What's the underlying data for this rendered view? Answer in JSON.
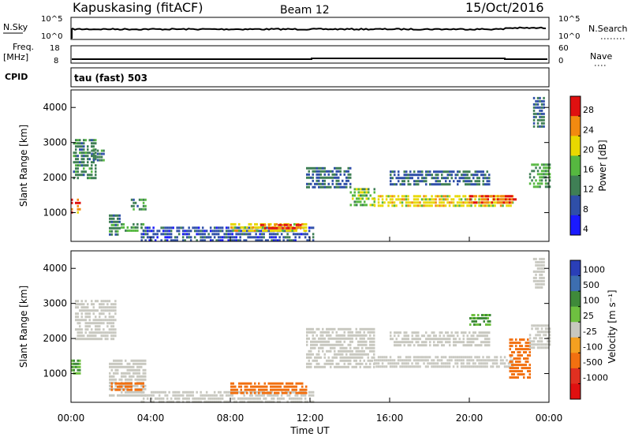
{
  "header": {
    "station": "Kapuskasing (fitACF)",
    "beam": "Beam 12",
    "date": "15/Oct/2016"
  },
  "top_panels": {
    "noise": {
      "left_label": "N.Sky",
      "left_ticks": [
        "10^5",
        "10^0"
      ],
      "right_label": "N.Search",
      "right_ticks": [
        "10^5",
        "10^0"
      ]
    },
    "freq": {
      "left_label_1": "Freq.",
      "left_label_2": "[MHz]",
      "left_ticks": [
        "18",
        "8"
      ],
      "right_label": "Nave",
      "right_ticks": [
        "60",
        "0"
      ]
    },
    "cpid": {
      "label": "CPID",
      "text": "tau (fast) 503"
    }
  },
  "x_axis": {
    "label": "Time UT",
    "ticks": [
      "00:00",
      "04:00",
      "08:00",
      "12:00",
      "16:00",
      "20:00",
      "00:00"
    ]
  },
  "colorbars": {
    "power": {
      "label": "Power [dB]",
      "ticks": [
        "28",
        "24",
        "20",
        "16",
        "12",
        "8",
        "4"
      ],
      "colors": [
        "#1a1aff",
        "#2f4fa8",
        "#3f7f55",
        "#56b840",
        "#e8d800",
        "#f28a10",
        "#e01010"
      ]
    },
    "velocity": {
      "label": "Velocity [m s⁻¹]",
      "ticks": [
        "1000",
        "500",
        "100",
        "25",
        "-25",
        "-100",
        "-500",
        "-1000"
      ],
      "colors": [
        "#2a3fb8",
        "#3d6eb0",
        "#3f8a3a",
        "#6ec040",
        "#c8c8c0",
        "#f4a020",
        "#f27010",
        "#e03020",
        "#e01010"
      ]
    }
  },
  "chart_data": [
    {
      "type": "heatmap",
      "title": "Power",
      "ylabel": "Slant Range [km]",
      "xlabel": "Time UT",
      "xlim": [
        "00:00",
        "24:00"
      ],
      "ylim": [
        180,
        4500
      ],
      "y_ticks": [
        1000,
        2000,
        3000,
        4000
      ],
      "regions": [
        {
          "t": [
            0.0,
            0.4
          ],
          "r": [
            1000,
            1400
          ],
          "v": 24
        },
        {
          "t": [
            0.1,
            1.2
          ],
          "r": [
            2000,
            3100
          ],
          "v": 12
        },
        {
          "t": [
            1.0,
            1.6
          ],
          "r": [
            2500,
            2800
          ],
          "v": 12
        },
        {
          "t": [
            1.9,
            2.4
          ],
          "r": [
            400,
            950
          ],
          "v": 12
        },
        {
          "t": [
            2.5,
            3.6
          ],
          "r": [
            500,
            700
          ],
          "v": 14
        },
        {
          "t": [
            3.0,
            3.7
          ],
          "r": [
            1100,
            1400
          ],
          "v": 12
        },
        {
          "t": [
            3.5,
            12.2
          ],
          "r": [
            200,
            600
          ],
          "v": 8
        },
        {
          "t": [
            8.0,
            11.8
          ],
          "r": [
            500,
            700
          ],
          "v": 20
        },
        {
          "t": [
            9.5,
            11.5
          ],
          "r": [
            560,
            680
          ],
          "v": 28
        },
        {
          "t": [
            11.8,
            14.0
          ],
          "r": [
            1700,
            2300
          ],
          "v": 10
        },
        {
          "t": [
            14.0,
            15.2
          ],
          "r": [
            1200,
            1700
          ],
          "v": 16
        },
        {
          "t": [
            15.2,
            22.2
          ],
          "r": [
            1150,
            1500
          ],
          "v": 20
        },
        {
          "t": [
            20.0,
            22.3
          ],
          "r": [
            1250,
            1500
          ],
          "v": 26
        },
        {
          "t": [
            16.0,
            21.0
          ],
          "r": [
            1800,
            2200
          ],
          "v": 10
        },
        {
          "t": [
            23.0,
            24.0
          ],
          "r": [
            1700,
            2400
          ],
          "v": 14
        },
        {
          "t": [
            23.2,
            23.7
          ],
          "r": [
            3400,
            4300
          ],
          "v": 10
        }
      ]
    },
    {
      "type": "heatmap",
      "title": "Velocity",
      "ylabel": "Slant Range [km]",
      "xlabel": "Time UT",
      "xlim": [
        "00:00",
        "24:00"
      ],
      "ylim": [
        180,
        4500
      ],
      "y_ticks": [
        1000,
        2000,
        3000,
        4000
      ],
      "regions": [
        {
          "t": [
            0.0,
            0.4
          ],
          "r": [
            1000,
            1400
          ],
          "v": 60
        },
        {
          "t": [
            0.2,
            2.2
          ],
          "r": [
            2000,
            3100
          ],
          "v": 0
        },
        {
          "t": [
            1.9,
            3.7
          ],
          "r": [
            400,
            1400
          ],
          "v": 0
        },
        {
          "t": [
            2.0,
            3.6
          ],
          "r": [
            500,
            750
          ],
          "v": -120
        },
        {
          "t": [
            3.5,
            12.2
          ],
          "r": [
            200,
            500
          ],
          "v": 0
        },
        {
          "t": [
            8.0,
            11.8
          ],
          "r": [
            450,
            750
          ],
          "v": -150
        },
        {
          "t": [
            11.8,
            15.2
          ],
          "r": [
            1200,
            2300
          ],
          "v": 0
        },
        {
          "t": [
            15.2,
            22.2
          ],
          "r": [
            1150,
            1500
          ],
          "v": 0
        },
        {
          "t": [
            16.0,
            21.0
          ],
          "r": [
            1800,
            2200
          ],
          "v": 0
        },
        {
          "t": [
            20.0,
            21.0
          ],
          "r": [
            2400,
            2700
          ],
          "v": 60
        },
        {
          "t": [
            22.0,
            23.0
          ],
          "r": [
            900,
            2000
          ],
          "v": -300
        },
        {
          "t": [
            23.0,
            24.0
          ],
          "r": [
            1700,
            2400
          ],
          "v": 0
        },
        {
          "t": [
            23.2,
            23.7
          ],
          "r": [
            3400,
            4300
          ],
          "v": 0
        }
      ]
    }
  ]
}
